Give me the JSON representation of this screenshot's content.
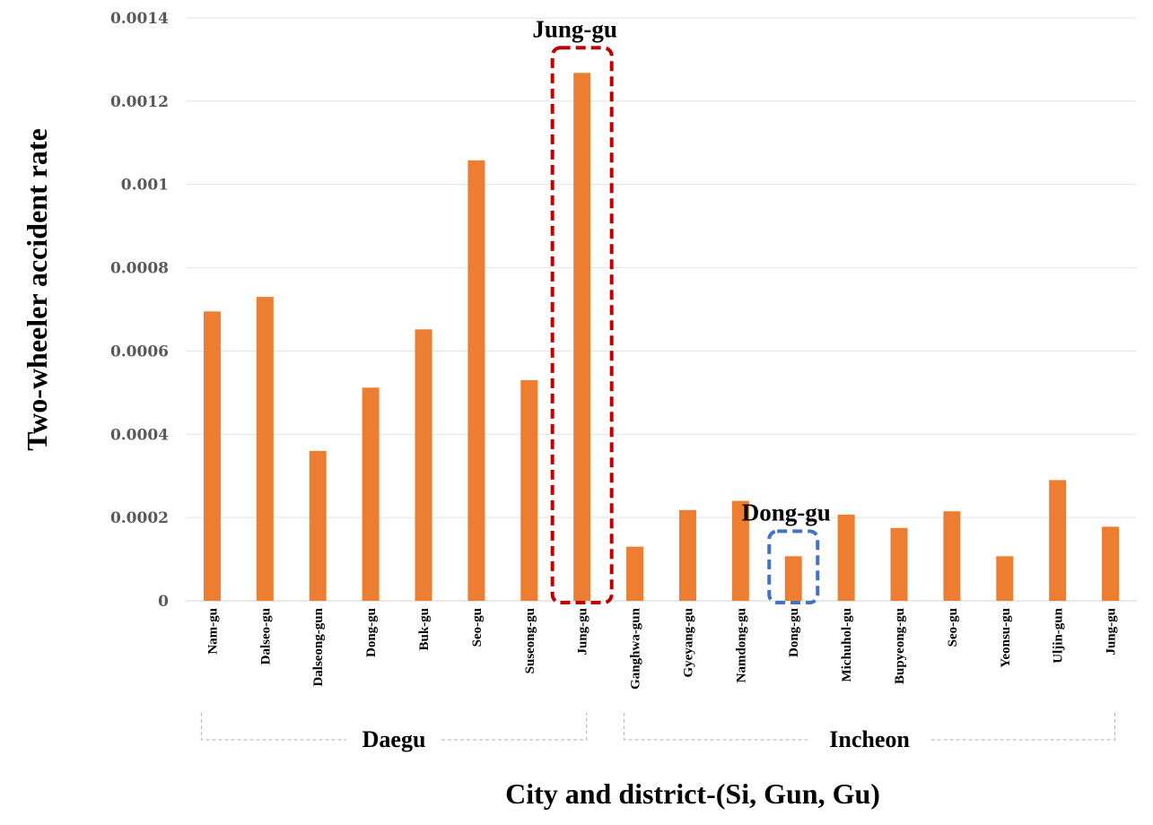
{
  "chart_data": {
    "type": "bar",
    "xlabel": "City and district-(Si, Gun, Gu)",
    "ylabel": "Two-wheeler accident rate",
    "ylim": [
      0,
      0.0014
    ],
    "yticks": [
      "0",
      "0.0002",
      "0.0004",
      "0.0006",
      "0.0008",
      "0.001",
      "0.0012",
      "0.0014"
    ],
    "grid": true,
    "bar_color": "#ED7D31",
    "categories": [
      "Nam-gu",
      "Dalseo-gu",
      "Dalseong-gun",
      "Dong-gu",
      "Buk-gu",
      "Seo-gu",
      "Suseong-gu",
      "Jung-gu",
      "Ganghwa-gun",
      "Gyeyang-gu",
      "Namdong-gu",
      "Dong-gu",
      "Michuhol-gu",
      "Bupyeong-gu",
      "Seo-gu",
      "Yeonsu-gu",
      "Uljin-gun",
      "Jung-gu"
    ],
    "values": [
      0.000695,
      0.00073,
      0.00036,
      0.000512,
      0.000652,
      0.001058,
      0.00053,
      0.001268,
      0.00013,
      0.000218,
      0.00024,
      0.000107,
      0.000207,
      0.000175,
      0.000215,
      0.000107,
      0.00029,
      0.000178
    ],
    "groups": [
      {
        "label": "Daegu",
        "start": 0,
        "end": 7
      },
      {
        "label": "Incheon",
        "start": 8,
        "end": 17
      }
    ],
    "annotations": [
      {
        "text": "Jung-gu",
        "index": 7,
        "color": "#C00000"
      },
      {
        "text": "Dong-gu",
        "index": 11,
        "color": "#4472C4"
      }
    ]
  }
}
